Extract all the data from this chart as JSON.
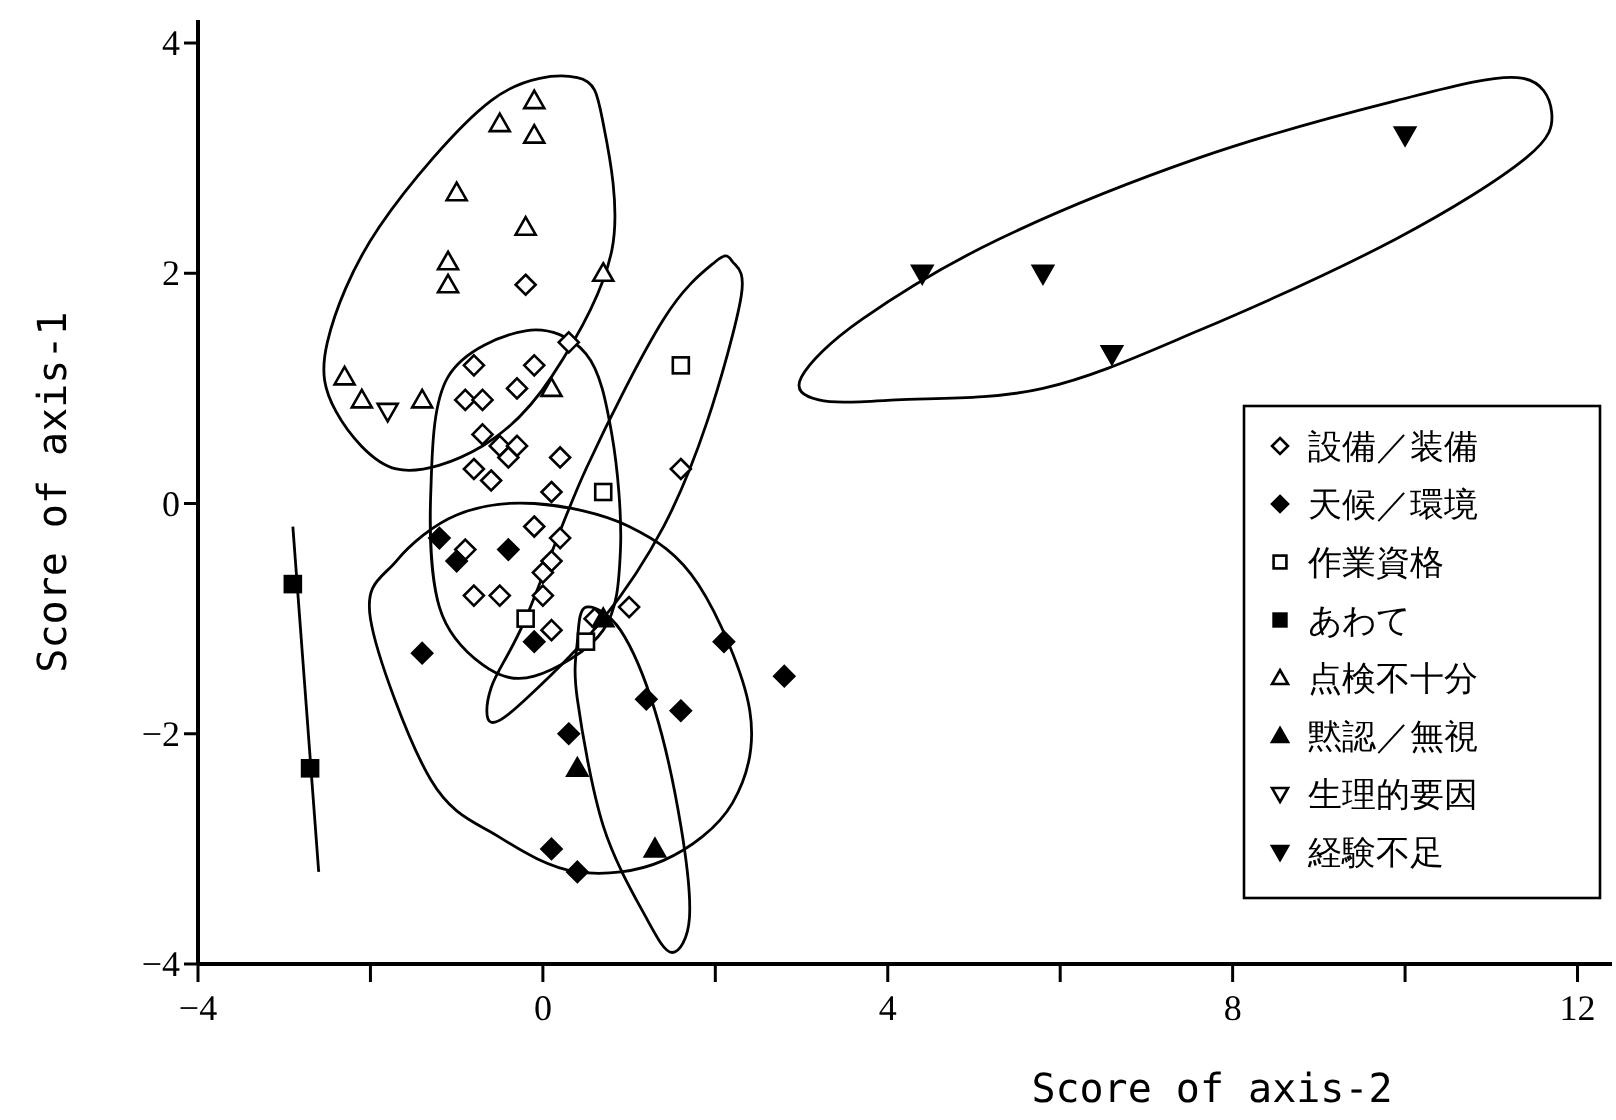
{
  "chart_data": {
    "type": "scatter",
    "xlabel": "Score of axis-2",
    "ylabel": "Score of axis-1",
    "xlim": [
      -4,
      12.4
    ],
    "ylim": [
      -4,
      4.2
    ],
    "xticks": [
      -4,
      {
        "value": -2,
        "label": null
      },
      0,
      {
        "value": 2,
        "label": null
      },
      4,
      {
        "value": 6,
        "label": null
      },
      8,
      {
        "value": 10,
        "label": null
      },
      12
    ],
    "yticks": [
      -4,
      -2,
      0,
      2,
      4
    ],
    "grid": false,
    "legend": "right",
    "series": [
      {
        "type": "line",
        "color": "#000000",
        "x": [
          -2.9,
          -2.6
        ],
        "values": [
          -0.2,
          -3.2
        ]
      },
      {
        "name": "設備／装備",
        "marker": "diamond-open",
        "color": "#000000",
        "x": [
          -0.2,
          0.3,
          -0.1,
          -0.8,
          -0.3,
          -0.9,
          -0.7,
          -0.7,
          -0.5,
          -0.3,
          0.2,
          -0.4,
          -0.8,
          -0.6,
          0.1,
          1.6,
          -0.1,
          0.2,
          -0.9,
          0.1,
          0.0,
          -0.8,
          -0.5,
          0.0,
          0.1,
          1.0,
          0.6
        ],
        "values": [
          1.9,
          1.4,
          1.2,
          1.2,
          1.0,
          0.9,
          0.9,
          0.6,
          0.5,
          0.5,
          0.4,
          0.4,
          0.3,
          0.2,
          0.1,
          0.3,
          -0.2,
          -0.3,
          -0.4,
          -0.5,
          -0.6,
          -0.8,
          -0.8,
          -0.8,
          -1.1,
          -0.9,
          -1.0
        ]
      },
      {
        "name": "天候／環境",
        "marker": "diamond",
        "color": "#000000",
        "x": [
          -1.2,
          -0.4,
          -1.0,
          -1.4,
          -0.1,
          1.2,
          1.6,
          0.3,
          0.1,
          0.4,
          2.1,
          2.8
        ],
        "values": [
          -0.3,
          -0.4,
          -0.5,
          -1.3,
          -1.2,
          -1.7,
          -1.8,
          -2.0,
          -3.0,
          -3.2,
          -1.2,
          -1.5
        ]
      },
      {
        "name": "作業資格",
        "marker": "square-open",
        "color": "#000000",
        "x": [
          1.6,
          0.7,
          -0.2,
          0.5
        ],
        "values": [
          1.2,
          0.1,
          -1.0,
          -1.2
        ]
      },
      {
        "name": "あわて",
        "marker": "square",
        "color": "#000000",
        "x": [
          -2.9,
          -2.7
        ],
        "values": [
          -0.7,
          -2.3
        ]
      },
      {
        "name": "点検不十分",
        "marker": "triangle-open",
        "color": "#000000",
        "x": [
          -0.1,
          -0.5,
          -0.1,
          -1.0,
          -0.2,
          -1.1,
          -1.1,
          0.7,
          -2.3,
          -2.1,
          -1.4,
          0.1
        ],
        "values": [
          3.5,
          3.3,
          3.2,
          2.7,
          2.4,
          2.1,
          1.9,
          2.0,
          1.1,
          0.9,
          0.9,
          1.0
        ]
      },
      {
        "name": "黙認／無視",
        "marker": "triangle",
        "color": "#000000",
        "x": [
          0.7,
          0.4,
          1.3
        ],
        "values": [
          -1.0,
          -2.3,
          -3.0
        ]
      },
      {
        "name": "生理的要因",
        "marker": "triangle-down-open",
        "color": "#000000",
        "x": [
          -1.8
        ],
        "values": [
          0.8
        ]
      },
      {
        "name": "経験不足",
        "marker": "triangle-down",
        "color": "#000000",
        "x": [
          4.4,
          5.8,
          6.6,
          10.0
        ],
        "values": [
          2.0,
          2.0,
          1.3,
          3.2
        ]
      }
    ]
  }
}
